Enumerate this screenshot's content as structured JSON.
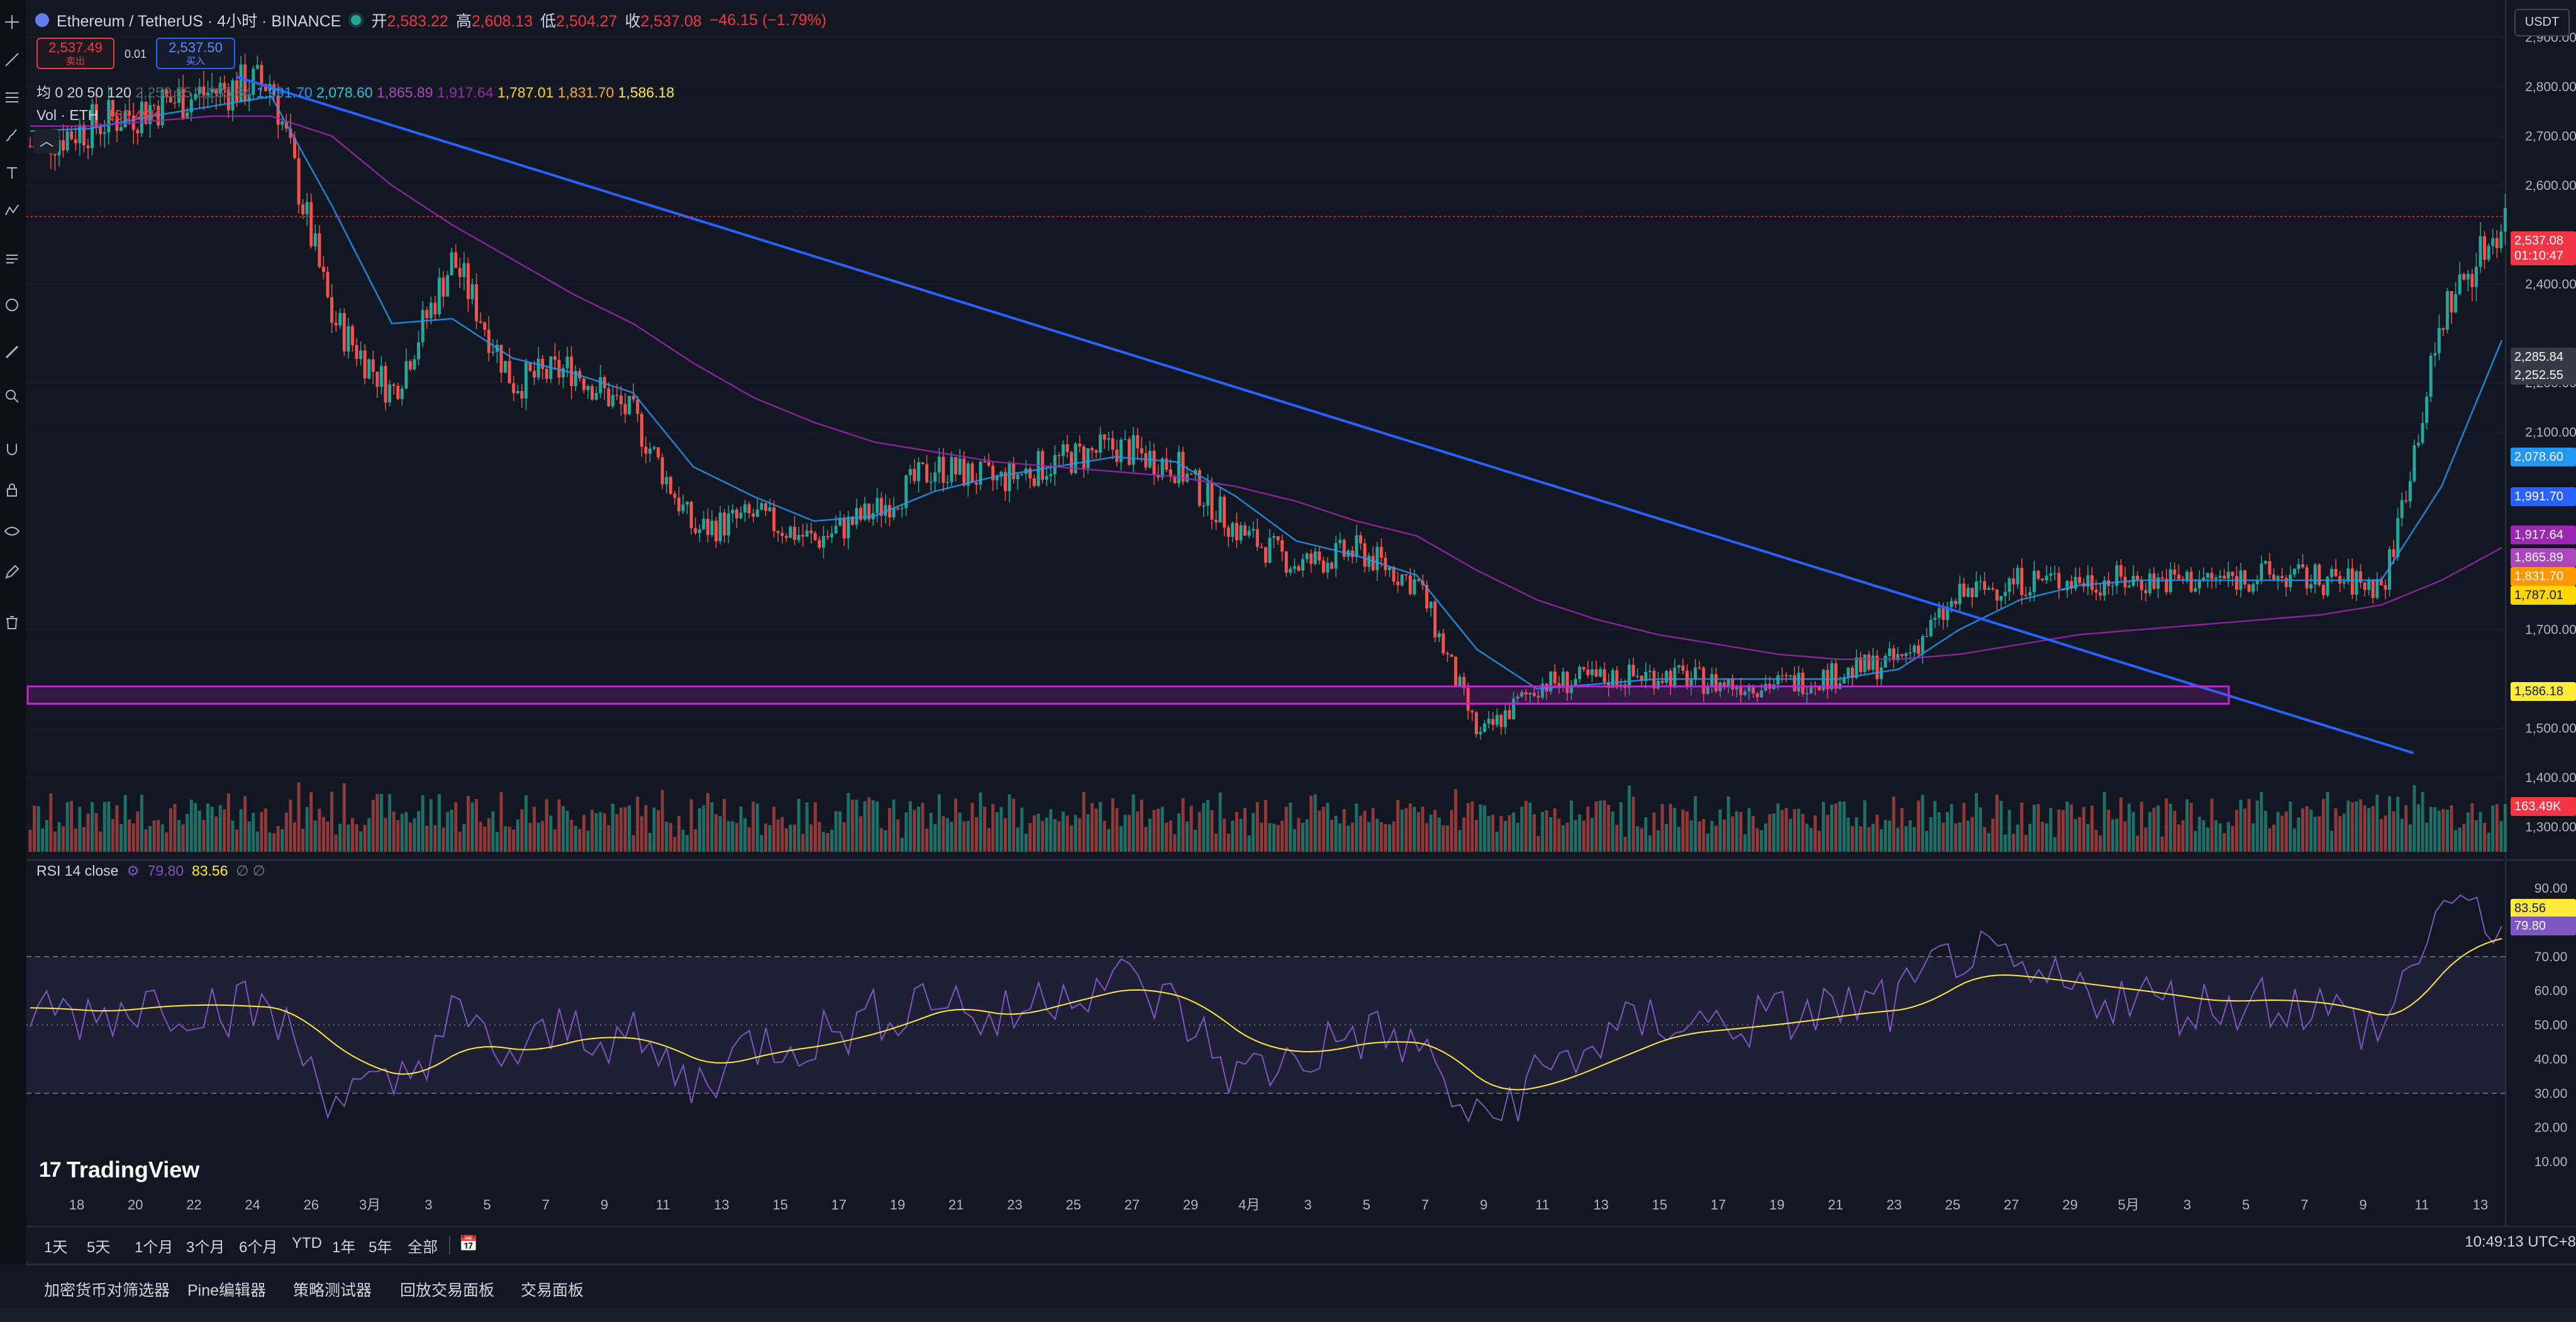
{
  "header": {
    "symbol": "Ethereum / TetherUS · 4小时 · BINANCE",
    "open_label": "开",
    "open": "2,583.22",
    "high_label": "高",
    "high": "2,608.13",
    "low_label": "低",
    "low": "2,504.27",
    "close_label": "收",
    "close": "2,537.08",
    "change": "−46.15 (−1.79%)"
  },
  "trade": {
    "sell_price": "2,537.49",
    "sell_label": "卖出",
    "spread": "0.01",
    "buy_price": "2,537.50",
    "buy_label": "买入"
  },
  "ma_legend": {
    "label": "均 0 20 50 120",
    "values": [
      {
        "text": "2,252.55",
        "color": "#5d606b"
      },
      {
        "text": "2,285.84",
        "color": "#5d606b"
      },
      {
        "text": "1,991.70",
        "color": "#2196f3"
      },
      {
        "text": "2,078.60",
        "color": "#26c6da"
      },
      {
        "text": "1,865.89",
        "color": "#ab47bc"
      },
      {
        "text": "1,917.64",
        "color": "#9c27b0"
      },
      {
        "text": "1,787.01",
        "color": "#ffd600"
      },
      {
        "text": "1,831.70",
        "color": "#ffa726"
      },
      {
        "text": "1,586.18",
        "color": "#ffeb3b"
      }
    ]
  },
  "volume_legend": {
    "label": "Vol · ETH",
    "value": "163.49K"
  },
  "rsi_legend": {
    "label": "RSI 14 close",
    "rsi": "79.80",
    "ma": "83.56",
    "extra": "∅ ∅"
  },
  "quote_badge": "USDT",
  "price_axis": {
    "ticks": [
      "2,900.00",
      "2,800.00",
      "2,700.00",
      "2,600.00",
      "2,400.00",
      "2,200.00",
      "2,100.00",
      "1,700.00",
      "1,500.00",
      "1,400.00",
      "1,300.00"
    ],
    "tags": [
      {
        "text": "2,537.08",
        "bg": "#f23645"
      },
      {
        "text": "01:10:47",
        "bg": "#f23645"
      },
      {
        "text": "2,285.84",
        "bg": "#363a45"
      },
      {
        "text": "2,252.55",
        "bg": "#363a45"
      },
      {
        "text": "2,078.60",
        "bg": "#2196f3"
      },
      {
        "text": "1,991.70",
        "bg": "#2962ff"
      },
      {
        "text": "1,917.64",
        "bg": "#9c27b0"
      },
      {
        "text": "1,865.89",
        "bg": "#ab47bc"
      },
      {
        "text": "1,831.70",
        "bg": "#ff9800"
      },
      {
        "text": "1,787.01",
        "bg": "#ffd600"
      },
      {
        "text": "1,586.18",
        "bg": "#ffeb3b"
      },
      {
        "text": "163.49K",
        "bg": "#f23645"
      }
    ]
  },
  "rsi_axis": {
    "ticks": [
      "90.00",
      "70.00",
      "60.00",
      "50.00",
      "40.00",
      "30.00",
      "20.00",
      "10.00"
    ],
    "tags": [
      {
        "text": "83.56",
        "bg": "#ffeb3b"
      },
      {
        "text": "79.80",
        "bg": "#7e57c2"
      }
    ]
  },
  "time_axis": [
    "18",
    "20",
    "22",
    "24",
    "26",
    "3月",
    "3",
    "5",
    "7",
    "9",
    "11",
    "13",
    "15",
    "17",
    "19",
    "21",
    "23",
    "25",
    "27",
    "29",
    "4月",
    "3",
    "5",
    "7",
    "9",
    "11",
    "13",
    "15",
    "17",
    "19",
    "21",
    "23",
    "25",
    "27",
    "29",
    "5月",
    "3",
    "5",
    "7",
    "9",
    "11",
    "13"
  ],
  "branding": "TradingView",
  "timeframes": [
    "1天",
    "5天",
    "1个月",
    "3个月",
    "6个月",
    "YTD",
    "1年",
    "5年",
    "全部"
  ],
  "clock": "10:49:13 UTC+8",
  "bottom_tabs": [
    "加密货币对筛选器",
    "Pine编辑器",
    "策略测试器",
    "回放交易面板",
    "交易面板"
  ],
  "colors": {
    "up": "#26a69a",
    "down": "#ef5350",
    "trendline": "#2962ff",
    "zone": "#c026d3",
    "rsi": "#7e57c2",
    "rsi_ma": "#ffeb3b"
  },
  "chart_data": {
    "type": "candlestick",
    "symbol": "ETHUSDT",
    "interval": "4h",
    "ylim": [
      1250,
      2950
    ],
    "x": [
      "2/16",
      "2/18",
      "2/20",
      "2/22",
      "2/24",
      "2/26",
      "3/1",
      "3/3",
      "3/5",
      "3/7",
      "3/9",
      "3/11",
      "3/13",
      "3/15",
      "3/17",
      "3/19",
      "3/21",
      "3/23",
      "3/25",
      "3/27",
      "3/29",
      "4/1",
      "4/3",
      "4/5",
      "4/7",
      "4/9",
      "4/11",
      "4/13",
      "4/15",
      "4/17",
      "4/19",
      "4/21",
      "4/23",
      "4/25",
      "4/27",
      "4/29",
      "5/1",
      "5/3",
      "5/5",
      "5/7",
      "5/9",
      "5/11"
    ],
    "close": [
      2680,
      2720,
      2760,
      2790,
      2810,
      2330,
      2180,
      2450,
      2200,
      2230,
      2130,
      1900,
      1930,
      1880,
      1940,
      2030,
      2000,
      2040,
      2070,
      2030,
      1900,
      1830,
      1860,
      1790,
      1480,
      1590,
      1600,
      1610,
      1590,
      1590,
      1610,
      1640,
      1770,
      1800,
      1800,
      1800,
      1800,
      1810,
      1800,
      1790,
      2350,
      2537
    ],
    "series": [
      {
        "name": "MA 20",
        "values": [
          2710,
          2715,
          2740,
          2760,
          2780,
          2560,
          2320,
          2330,
          2250,
          2220,
          2180,
          2030,
          1970,
          1920,
          1930,
          1980,
          2010,
          2030,
          2050,
          2040,
          1970,
          1880,
          1850,
          1810,
          1660,
          1580,
          1590,
          1600,
          1600,
          1600,
          1600,
          1620,
          1700,
          1760,
          1790,
          1800,
          1800,
          1800,
          1800,
          1800,
          1990,
          2286
        ]
      },
      {
        "name": "MA 120",
        "values": [
          2720,
          2720,
          2730,
          2740,
          2740,
          2700,
          2600,
          2520,
          2450,
          2380,
          2320,
          2240,
          2170,
          2120,
          2080,
          2060,
          2040,
          2030,
          2020,
          2010,
          1990,
          1960,
          1920,
          1890,
          1820,
          1760,
          1720,
          1690,
          1670,
          1650,
          1640,
          1640,
          1650,
          1670,
          1690,
          1700,
          1710,
          1720,
          1730,
          1750,
          1800,
          1866
        ]
      }
    ],
    "volume_label": "Vol · ETH",
    "rsi": {
      "period": 14,
      "last": 79.8,
      "ma_last": 83.56,
      "upper": 70,
      "lower": 30,
      "ylim": [
        10,
        90
      ],
      "values": [
        55,
        53,
        57,
        56,
        54,
        30,
        30,
        52,
        40,
        50,
        45,
        32,
        45,
        46,
        52,
        60,
        50,
        60,
        64,
        55,
        35,
        40,
        48,
        44,
        20,
        35,
        45,
        52,
        50,
        52,
        55,
        56,
        72,
        63,
        60,
        58,
        55,
        58,
        55,
        48,
        86,
        80
      ]
    },
    "trendline": {
      "from": {
        "x": "2/23",
        "y": 2820
      },
      "to": {
        "x": "5/7",
        "y": 1450
      }
    },
    "support_zone": [
      1550,
      1585
    ]
  }
}
